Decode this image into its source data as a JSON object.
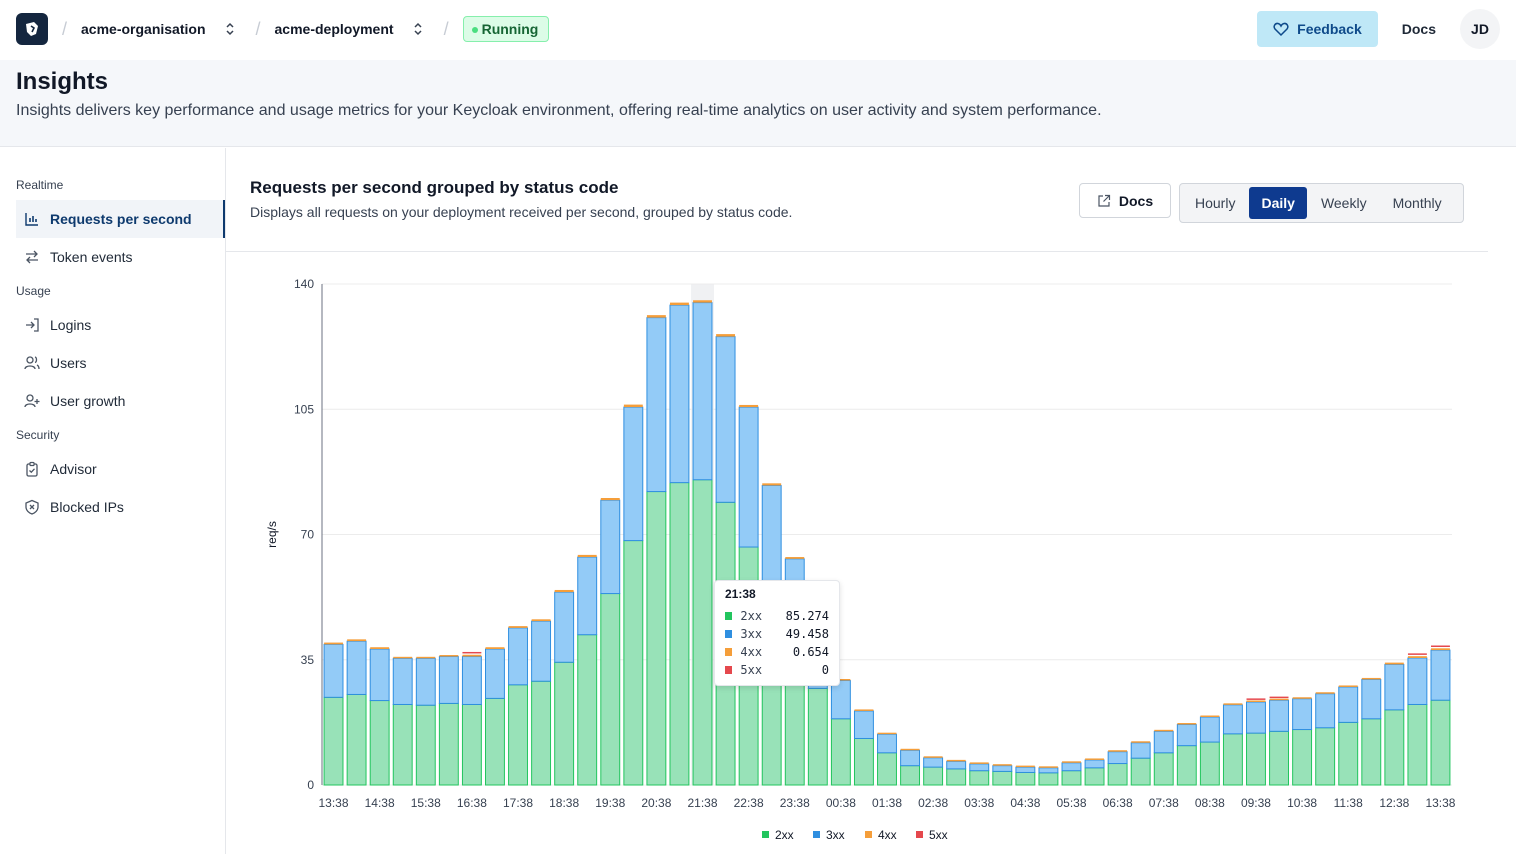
{
  "topbar": {
    "organisation": "acme-organisation",
    "deployment": "acme-deployment",
    "status": "Running",
    "feedback_label": "Feedback",
    "docs_label": "Docs",
    "avatar_initials": "JD",
    "breadcrumb_separator": "/"
  },
  "header": {
    "title": "Insights",
    "description": "Insights delivers key performance and usage metrics for your Keycloak environment, offering real-time analytics on user activity and system performance."
  },
  "sidebar": {
    "groups": [
      {
        "label": "Realtime",
        "items": [
          {
            "label": "Requests per second",
            "icon": "bar-chart-icon",
            "active": true
          },
          {
            "label": "Token events",
            "icon": "arrows-swap-icon",
            "active": false
          }
        ]
      },
      {
        "label": "Usage",
        "items": [
          {
            "label": "Logins",
            "icon": "login-icon",
            "active": false
          },
          {
            "label": "Users",
            "icon": "users-icon",
            "active": false
          },
          {
            "label": "User growth",
            "icon": "user-plus-icon",
            "active": false
          }
        ]
      },
      {
        "label": "Security",
        "items": [
          {
            "label": "Advisor",
            "icon": "clipboard-check-icon",
            "active": false
          },
          {
            "label": "Blocked IPs",
            "icon": "shield-x-icon",
            "active": false
          }
        ]
      }
    ]
  },
  "panel": {
    "title": "Requests per second grouped by status code",
    "description": "Displays all requests on your deployment received per second, grouped by status code.",
    "docs_label": "Docs",
    "periods": [
      "Hourly",
      "Daily",
      "Weekly",
      "Monthly"
    ],
    "active_period": "Daily"
  },
  "tooltip": {
    "time": "21:38",
    "rows": [
      {
        "name": "2xx",
        "value": "85.274"
      },
      {
        "name": "3xx",
        "value": "49.458"
      },
      {
        "name": "4xx",
        "value": "0.654"
      },
      {
        "name": "5xx",
        "value": "0"
      }
    ]
  },
  "colors": {
    "2xx_fill": "#98e2b8",
    "2xx_stroke": "#22c55e",
    "3xx_fill": "#93cbf7",
    "3xx_stroke": "#2f8fe0",
    "4xx": "#f59e3a",
    "5xx": "#e5484d",
    "accent": "#0e3a8f"
  },
  "chart_data": {
    "type": "bar",
    "stacked": true,
    "ylabel": "req/s",
    "ylim": [
      0,
      140
    ],
    "yticks": [
      0,
      35,
      70,
      105,
      140
    ],
    "xtick_labels": [
      "13:38",
      "14:38",
      "15:38",
      "16:38",
      "17:38",
      "18:38",
      "19:38",
      "20:38",
      "21:38",
      "22:38",
      "23:38",
      "00:38",
      "01:38",
      "02:38",
      "03:38",
      "04:38",
      "05:38",
      "06:38",
      "07:38",
      "08:38",
      "09:38",
      "10:38",
      "11:38",
      "12:38",
      "13:38"
    ],
    "categories": [
      "13:38",
      "14:08",
      "14:38",
      "15:08",
      "15:38",
      "16:08",
      "16:38",
      "17:08",
      "17:38",
      "18:08",
      "18:38",
      "19:08",
      "19:38",
      "20:08",
      "20:38",
      "21:08",
      "21:38",
      "22:08",
      "22:38",
      "23:08",
      "23:38",
      "00:08",
      "00:38",
      "01:08",
      "01:38",
      "02:08",
      "02:38",
      "03:08",
      "03:38",
      "04:08",
      "04:38",
      "05:08",
      "05:38",
      "06:08",
      "06:38",
      "07:08",
      "07:38",
      "08:08",
      "08:38",
      "09:08",
      "09:38",
      "10:08",
      "10:38",
      "11:08",
      "11:38",
      "12:08",
      "12:38",
      "13:08",
      "13:38"
    ],
    "series": [
      {
        "name": "2xx",
        "values": [
          24.5,
          25.3,
          23.6,
          22.5,
          22.3,
          22.8,
          22.5,
          24.2,
          28.0,
          29.0,
          34.3,
          42.0,
          53.5,
          68.3,
          82.0,
          84.5,
          85.3,
          79.0,
          66.5,
          50.0,
          36.0,
          27.0,
          18.5,
          13.0,
          9.0,
          5.4,
          5.0,
          4.5,
          4.0,
          3.8,
          3.5,
          3.4,
          4.0,
          4.8,
          6.0,
          7.5,
          9.0,
          11.0,
          12.0,
          14.3,
          14.5,
          15.0,
          15.5,
          16.0,
          17.5,
          18.5,
          21.0,
          22.5,
          23.7
        ]
      },
      {
        "name": "3xx",
        "values": [
          14.8,
          14.9,
          14.4,
          12.9,
          13.1,
          13.1,
          13.4,
          13.8,
          15.9,
          16.8,
          19.6,
          21.7,
          26.1,
          37.3,
          48.6,
          49.6,
          49.5,
          46.3,
          39.1,
          33.7,
          27.2,
          18.5,
          10.7,
          7.7,
          5.2,
          4.3,
          2.6,
          2.1,
          1.9,
          1.6,
          1.5,
          1.4,
          2.2,
          2.2,
          3.3,
          4.3,
          6.0,
          5.9,
          7.0,
          8.1,
          8.7,
          8.7,
          8.6,
          9.5,
          9.9,
          11.0,
          12.7,
          13.0,
          14.0
        ]
      },
      {
        "name": "4xx",
        "values": [
          0.5,
          0.5,
          0.5,
          0.4,
          0.4,
          0.4,
          0.5,
          0.5,
          0.5,
          0.5,
          0.6,
          0.6,
          0.6,
          0.7,
          0.7,
          0.7,
          0.654,
          0.7,
          0.6,
          0.6,
          0.5,
          0.5,
          0.4,
          0.3,
          0.2,
          0.2,
          0.2,
          0.1,
          0.1,
          0.1,
          0.1,
          0.1,
          0.1,
          0.1,
          0.2,
          0.2,
          0.2,
          0.2,
          0.3,
          0.3,
          0.3,
          0.3,
          0.3,
          0.3,
          0.4,
          0.4,
          0.5,
          0.5,
          0.5
        ]
      },
      {
        "name": "5xx",
        "values": [
          0,
          0,
          0,
          0,
          0,
          0,
          0.1,
          0,
          0,
          0,
          0,
          0,
          0,
          0,
          0,
          0,
          0,
          0,
          0,
          0,
          0,
          0,
          0,
          0,
          0,
          0,
          0,
          0,
          0,
          0,
          0,
          0,
          0,
          0,
          0,
          0,
          0,
          0,
          0,
          0,
          0.4,
          0.4,
          0,
          0,
          0,
          0,
          0,
          0.3,
          0.3
        ]
      }
    ],
    "legend": [
      "2xx",
      "3xx",
      "4xx",
      "5xx"
    ],
    "legend_position": "bottom",
    "grid": true,
    "highlighted_category": "21:38"
  }
}
